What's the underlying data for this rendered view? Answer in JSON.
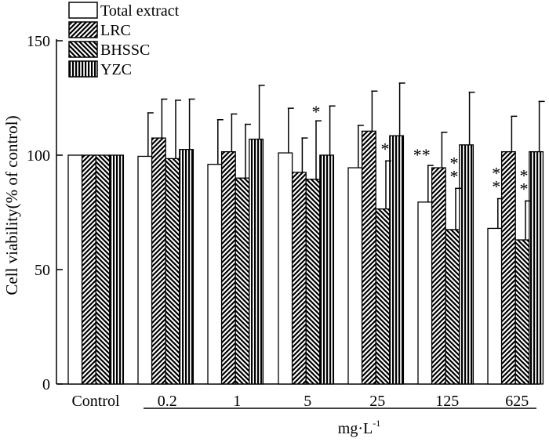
{
  "chart_data": {
    "type": "bar",
    "title": "",
    "ylabel": "Cell viability(% of control)",
    "xlabel_unit_base": "mg·L",
    "xlabel_unit_exp": "-1",
    "ylim": [
      0,
      150
    ],
    "yticks": [
      0,
      50,
      100,
      150
    ],
    "categories": [
      "Control",
      "0.2",
      "1",
      "5",
      "25",
      "125",
      "625"
    ],
    "legend_position": "top-left",
    "series": [
      {
        "name": "Total extract",
        "pattern": "white",
        "values": [
          100,
          99.5,
          96,
          101,
          94.5,
          79.5,
          68
        ],
        "errors": [
          0,
          19,
          19.5,
          19.5,
          18.5,
          16,
          13
        ],
        "marks": [
          "",
          "",
          "",
          "",
          "",
          "**",
          "**"
        ]
      },
      {
        "name": "LRC",
        "pattern": "diag-right",
        "values": [
          100,
          107.5,
          101.5,
          92.5,
          110.5,
          94.5,
          101.5
        ],
        "errors": [
          0,
          17,
          16.5,
          15,
          17.5,
          15.5,
          15.5
        ],
        "marks": [
          "",
          "",
          "",
          "",
          "",
          "",
          ""
        ]
      },
      {
        "name": "BHSSC",
        "pattern": "diag-left",
        "values": [
          100,
          98.5,
          90,
          89.5,
          76.5,
          67.5,
          63
        ],
        "errors": [
          0,
          25.5,
          23.5,
          25.5,
          21,
          18,
          17
        ],
        "marks": [
          "",
          "",
          "",
          "*",
          "*",
          "**",
          "**"
        ]
      },
      {
        "name": "YZC",
        "pattern": "vertical",
        "values": [
          100,
          102.5,
          107,
          100,
          108.5,
          104.5,
          101.5
        ],
        "errors": [
          0,
          22,
          23.5,
          21.5,
          23,
          23,
          22
        ]
      }
    ]
  }
}
